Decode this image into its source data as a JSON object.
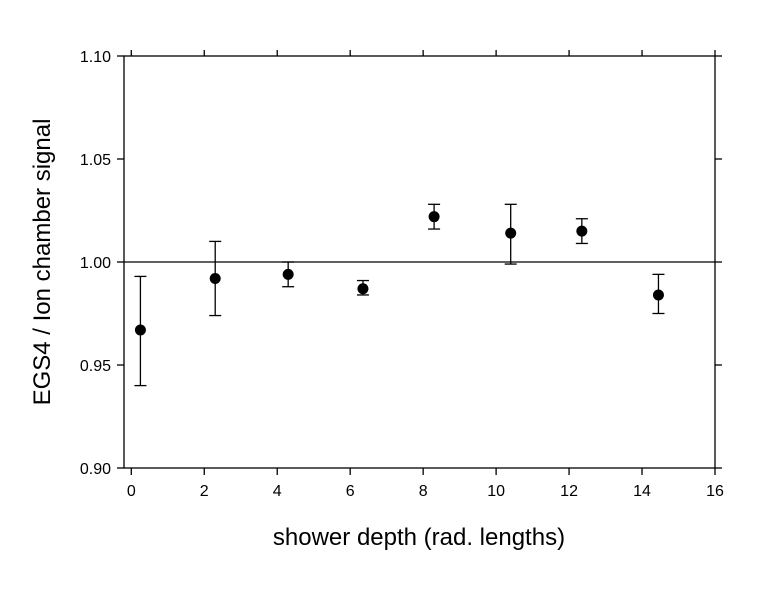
{
  "chart_data": {
    "type": "scatter",
    "title": "",
    "xlabel": "shower depth (rad. lengths)",
    "ylabel": "EGS4 / Ion chamber  signal",
    "xlim": [
      -0.2,
      16
    ],
    "ylim": [
      0.9,
      1.1
    ],
    "x_ticks": [
      0,
      2,
      4,
      6,
      8,
      10,
      12,
      14,
      16
    ],
    "y_ticks": [
      0.9,
      0.95,
      1.0,
      1.05,
      1.1
    ],
    "x_tick_labels": [
      "0",
      "2",
      "4",
      "6",
      "8",
      "10",
      "12",
      "14",
      "16"
    ],
    "y_tick_labels": [
      "0.90",
      "0.95",
      "1.00",
      "1.05",
      "1.10"
    ],
    "reference_line_y": 1.0,
    "grid": false,
    "legend": "none",
    "marker_color": "#000000",
    "points": [
      {
        "x": 0.25,
        "y": 0.967,
        "ylow": 0.94,
        "yhigh": 0.993
      },
      {
        "x": 2.3,
        "y": 0.992,
        "ylow": 0.974,
        "yhigh": 1.01
      },
      {
        "x": 4.3,
        "y": 0.994,
        "ylow": 0.988,
        "yhigh": 1.0
      },
      {
        "x": 6.35,
        "y": 0.987,
        "ylow": 0.984,
        "yhigh": 0.991
      },
      {
        "x": 8.3,
        "y": 1.022,
        "ylow": 1.016,
        "yhigh": 1.028
      },
      {
        "x": 10.4,
        "y": 1.014,
        "ylow": 0.999,
        "yhigh": 1.028
      },
      {
        "x": 12.35,
        "y": 1.015,
        "ylow": 1.009,
        "yhigh": 1.021
      },
      {
        "x": 14.45,
        "y": 0.984,
        "ylow": 0.975,
        "yhigh": 0.994
      }
    ]
  }
}
